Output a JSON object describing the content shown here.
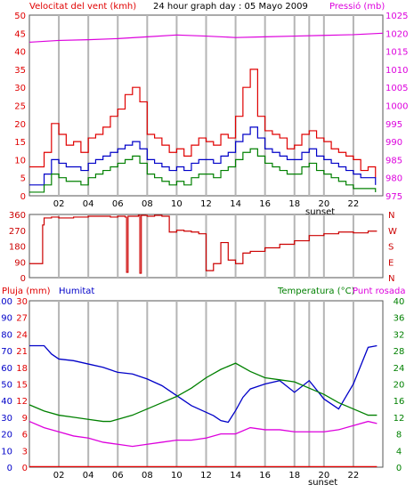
{
  "chart_data": [
    {
      "type": "line",
      "title": "24 hour graph day : 05 Mayo 2009",
      "left_axis_label": "Velocitat del vent (kmh)",
      "right_axis_label": "Pressió (mb)",
      "ylim_left": [
        0,
        50
      ],
      "ylim_right": [
        975,
        1025
      ],
      "left_ticks": [
        "0",
        "5",
        "10",
        "15",
        "20",
        "25",
        "30",
        "35",
        "40",
        "45",
        "50"
      ],
      "right_ticks": [
        "975",
        "980",
        "985",
        "990",
        "995",
        "1000",
        "1005",
        "1010",
        "1015",
        "1020",
        "1025"
      ],
      "x_ticks": [
        "02",
        "04",
        "06",
        "08",
        "10",
        "12",
        "14",
        "16",
        "18",
        "20",
        "22"
      ],
      "sunset_label": "sunset",
      "xlim": [
        0,
        24
      ],
      "grid": "vertical",
      "colors": {
        "gust": "#e00000",
        "speed": "#0000c8",
        "avg": "#008000",
        "pressure": "#dd00dd"
      },
      "series": [
        {
          "name": "",
          "color": "#e00000",
          "x": [
            0,
            1,
            1.5,
            2,
            2.5,
            3,
            3.5,
            4,
            4.5,
            5,
            5.5,
            6,
            6.5,
            7,
            7.5,
            8,
            8.5,
            9,
            9.5,
            10,
            10.5,
            11,
            11.5,
            12,
            12.5,
            13,
            13.5,
            14,
            14.5,
            15,
            15.5,
            16,
            16.5,
            17,
            17.5,
            18,
            18.5,
            19,
            19.5,
            20,
            20.5,
            21,
            21.5,
            22,
            22.5,
            23,
            23.5
          ],
          "values": [
            8,
            12,
            20,
            17,
            14,
            15,
            12,
            16,
            17,
            19,
            22,
            24,
            28,
            30,
            26,
            17,
            16,
            14,
            12,
            13,
            11,
            14,
            16,
            15,
            14,
            17,
            16,
            22,
            30,
            35,
            22,
            18,
            17,
            16,
            13,
            14,
            17,
            18,
            16,
            15,
            13,
            12,
            11,
            10,
            7,
            8,
            5
          ]
        },
        {
          "name": "",
          "color": "#0000c8",
          "x": [
            0,
            1,
            1.5,
            2,
            2.5,
            3,
            3.5,
            4,
            4.5,
            5,
            5.5,
            6,
            6.5,
            7,
            7.5,
            8,
            8.5,
            9,
            9.5,
            10,
            10.5,
            11,
            11.5,
            12,
            12.5,
            13,
            13.5,
            14,
            14.5,
            15,
            15.5,
            16,
            16.5,
            17,
            17.5,
            18,
            18.5,
            19,
            19.5,
            20,
            20.5,
            21,
            21.5,
            22,
            22.5,
            23,
            23.5
          ],
          "values": [
            3,
            6,
            10,
            9,
            8,
            8,
            7,
            9,
            10,
            11,
            12,
            13,
            14,
            15,
            13,
            10,
            9,
            8,
            7,
            8,
            7,
            9,
            10,
            10,
            9,
            11,
            12,
            15,
            17,
            19,
            16,
            13,
            12,
            11,
            10,
            10,
            12,
            13,
            11,
            10,
            9,
            8,
            7,
            6,
            5,
            5,
            3
          ]
        },
        {
          "name": "",
          "color": "#008000",
          "x": [
            0,
            1,
            1.5,
            2,
            2.5,
            3,
            3.5,
            4,
            4.5,
            5,
            5.5,
            6,
            6.5,
            7,
            7.5,
            8,
            8.5,
            9,
            9.5,
            10,
            10.5,
            11,
            11.5,
            12,
            12.5,
            13,
            13.5,
            14,
            14.5,
            15,
            15.5,
            16,
            16.5,
            17,
            17.5,
            18,
            18.5,
            19,
            19.5,
            20,
            20.5,
            21,
            21.5,
            22,
            22.5,
            23,
            23.5
          ],
          "values": [
            1,
            3,
            6,
            5,
            4,
            4,
            3,
            5,
            6,
            7,
            8,
            9,
            10,
            11,
            9,
            6,
            5,
            4,
            3,
            4,
            3,
            5,
            6,
            6,
            5,
            7,
            8,
            10,
            12,
            13,
            11,
            9,
            8,
            7,
            6,
            6,
            8,
            9,
            7,
            6,
            5,
            4,
            3,
            2,
            2,
            2,
            1
          ]
        },
        {
          "name": "",
          "color": "#dd00dd",
          "axis": "right",
          "x": [
            0,
            2,
            4,
            6,
            8,
            10,
            12,
            14,
            16,
            18,
            20,
            22,
            24
          ],
          "values": [
            1017.5,
            1018,
            1018.2,
            1018.5,
            1019,
            1019.5,
            1019.2,
            1018.8,
            1019,
            1019.2,
            1019.4,
            1019.6,
            1020
          ]
        }
      ]
    },
    {
      "type": "line",
      "ylim": [
        0,
        360
      ],
      "left_ticks": [
        "0",
        "90",
        "180",
        "270",
        "360"
      ],
      "right_ticks": [
        "N",
        "W",
        "S",
        "E",
        "N"
      ],
      "xlim": [
        0,
        24
      ],
      "series": [
        {
          "name": "",
          "color": "#cc0000",
          "x": [
            0,
            0.8,
            0.9,
            1,
            1.5,
            2,
            3,
            4,
            5,
            5.5,
            6,
            6.5,
            6.6,
            6.7,
            7,
            7.4,
            7.5,
            7.6,
            8,
            8.5,
            9,
            9.5,
            10,
            10.5,
            11,
            11.5,
            12,
            12.5,
            13,
            13.5,
            14,
            14.5,
            15,
            16,
            17,
            18,
            19,
            20,
            21,
            22,
            23,
            23.6
          ],
          "values": [
            80,
            80,
            300,
            340,
            345,
            340,
            345,
            350,
            350,
            345,
            350,
            345,
            30,
            350,
            350,
            355,
            25,
            355,
            350,
            355,
            350,
            260,
            270,
            265,
            260,
            250,
            40,
            80,
            200,
            100,
            80,
            140,
            150,
            170,
            190,
            210,
            240,
            250,
            260,
            255,
            265,
            265
          ]
        }
      ]
    },
    {
      "type": "line",
      "left_axis_label": "Pluja (mm)",
      "humidity_label": "Humitat",
      "right_axis_label": "Temperatura (°C)",
      "dew_label": "Punt rosada",
      "xlim": [
        0,
        24
      ],
      "humidity_ticks": [
        "0",
        "10",
        "20",
        "30",
        "40",
        "50",
        "60",
        "70",
        "80",
        "90",
        "100"
      ],
      "rain_ticks": [
        "0",
        "3",
        "6",
        "9",
        "12",
        "15",
        "18",
        "21",
        "24",
        "27",
        "30"
      ],
      "right_ticks": [
        "0",
        "4",
        "8",
        "12",
        "16",
        "20",
        "24",
        "28",
        "32",
        "36",
        "40"
      ],
      "x_ticks": [
        "02",
        "04",
        "06",
        "08",
        "10",
        "12",
        "14",
        "16",
        "18",
        "20",
        "22"
      ],
      "sunset_label": "sunset",
      "series": [
        {
          "name": "Humitat",
          "color": "#0000c8",
          "axis": "humidity",
          "x": [
            0,
            1,
            1.5,
            2,
            3,
            4,
            5,
            6,
            7,
            8,
            9,
            10,
            11,
            12,
            12.5,
            13,
            13.5,
            14,
            14.5,
            15,
            16,
            17,
            18,
            19,
            20,
            21,
            22,
            23,
            23.6
          ],
          "values": [
            73,
            73,
            68,
            65,
            64,
            62,
            60,
            57,
            56,
            53,
            49,
            43,
            37,
            33,
            31,
            28,
            27,
            34,
            42,
            47,
            50,
            52,
            45,
            52,
            41,
            35,
            50,
            72,
            73
          ]
        },
        {
          "name": "Temperatura",
          "color": "#008000",
          "axis": "temp",
          "x": [
            0,
            1,
            2,
            3,
            4,
            5,
            5.5,
            6,
            7,
            8,
            9,
            10,
            11,
            12,
            13,
            14,
            15,
            16,
            17,
            18,
            19,
            20,
            21,
            22,
            23,
            23.6
          ],
          "values": [
            15,
            13.5,
            12.5,
            12,
            11.5,
            11,
            11,
            11.5,
            12.5,
            14,
            15.5,
            17,
            19,
            21.5,
            23.5,
            25,
            23,
            21.5,
            21,
            20.5,
            19,
            17.5,
            15.5,
            14,
            12.5,
            12.5
          ]
        },
        {
          "name": "Punt rosada",
          "color": "#dd00dd",
          "axis": "temp",
          "x": [
            0,
            1,
            2,
            3,
            4,
            5,
            6,
            7,
            8,
            9,
            10,
            11,
            12,
            13,
            14,
            15,
            16,
            17,
            18,
            19,
            20,
            21,
            22,
            23,
            23.6
          ],
          "values": [
            11,
            9.5,
            8.5,
            7.5,
            7,
            6,
            5.5,
            5,
            5.5,
            6,
            6.5,
            6.5,
            7,
            8,
            8,
            9.5,
            9,
            9,
            8.5,
            8.5,
            8.5,
            9,
            10,
            11,
            10.5
          ]
        },
        {
          "name": "Pluja",
          "color": "#e00000",
          "axis": "rain",
          "x": [
            0,
            23.6
          ],
          "values": [
            0.1,
            0.1
          ]
        }
      ]
    }
  ]
}
